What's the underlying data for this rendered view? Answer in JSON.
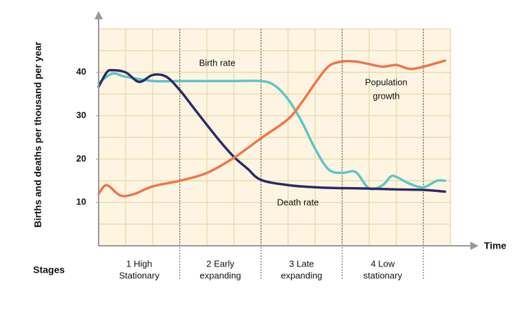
{
  "chart_data": {
    "type": "line",
    "y_label": "Births and deaths per thousand per year",
    "x_label": "Time",
    "xlim": [
      0,
      13
    ],
    "xgrid": [
      0,
      1,
      2,
      3,
      4,
      5,
      6,
      7,
      8,
      9,
      10,
      11,
      12,
      13
    ],
    "ylim": [
      0,
      50
    ],
    "yticks": [
      10,
      20,
      30,
      40
    ],
    "ygrid": [
      0,
      5,
      10,
      15,
      20,
      25,
      30,
      35,
      40,
      45,
      50
    ],
    "grid": true,
    "stages": {
      "label": "Stages",
      "bounds": [
        0,
        3,
        6,
        9,
        12
      ],
      "names": [
        [
          "1 High",
          "Stationary"
        ],
        [
          "2 Early",
          "expanding"
        ],
        [
          "3 Late",
          "expanding"
        ],
        [
          "4 Low",
          "stationary"
        ]
      ]
    },
    "series": [
      {
        "name": "Birth rate",
        "color": "#5cc6c6",
        "x": [
          0,
          0.5,
          1,
          2,
          3,
          4,
          5,
          6,
          6.5,
          7,
          7.5,
          8,
          8.5,
          9,
          9.5,
          10,
          10.5,
          10.8,
          11,
          11.5,
          12,
          12.5,
          12.8
        ],
        "values": [
          37.5,
          39.7,
          39,
          38,
          38,
          38,
          38,
          38,
          37,
          33.8,
          28.7,
          22.4,
          17.6,
          16.8,
          17,
          13.2,
          14,
          16,
          15.9,
          14.3,
          13.5,
          15,
          15
        ]
      },
      {
        "name": "Death rate",
        "color": "#2b2a66",
        "x": [
          0,
          0.3,
          0.5,
          1,
          1.5,
          2,
          2.5,
          3,
          3.5,
          4,
          4.5,
          5,
          5.5,
          6,
          7,
          8,
          9,
          10,
          11,
          12,
          12.8
        ],
        "values": [
          36.7,
          40,
          40.5,
          40,
          37.8,
          39.4,
          39,
          35.9,
          31.9,
          27.9,
          24,
          20.5,
          17.8,
          15.2,
          14,
          13.5,
          13.3,
          13.2,
          13,
          12.9,
          12.5
        ]
      },
      {
        "name": "Population growth",
        "color": "#f0744a",
        "x": [
          0,
          0.3,
          0.8,
          1.3,
          2,
          3,
          4,
          5,
          6,
          7,
          7.5,
          8,
          8.5,
          9,
          9.5,
          10,
          10.5,
          11,
          11.5,
          12,
          12.8
        ],
        "values": [
          12,
          14,
          11.6,
          11.9,
          13.7,
          15,
          16.8,
          20.3,
          24.8,
          29.2,
          33,
          37.5,
          41.4,
          42.5,
          42.5,
          41.9,
          41.3,
          41.7,
          40.8,
          41.3,
          42.7
        ]
      }
    ],
    "annotations": [
      {
        "series": 0,
        "lines": [
          "Birth rate"
        ]
      },
      {
        "series": 1,
        "lines": [
          "Death rate"
        ]
      },
      {
        "series": 2,
        "lines": [
          "Population",
          "growth"
        ]
      }
    ]
  }
}
